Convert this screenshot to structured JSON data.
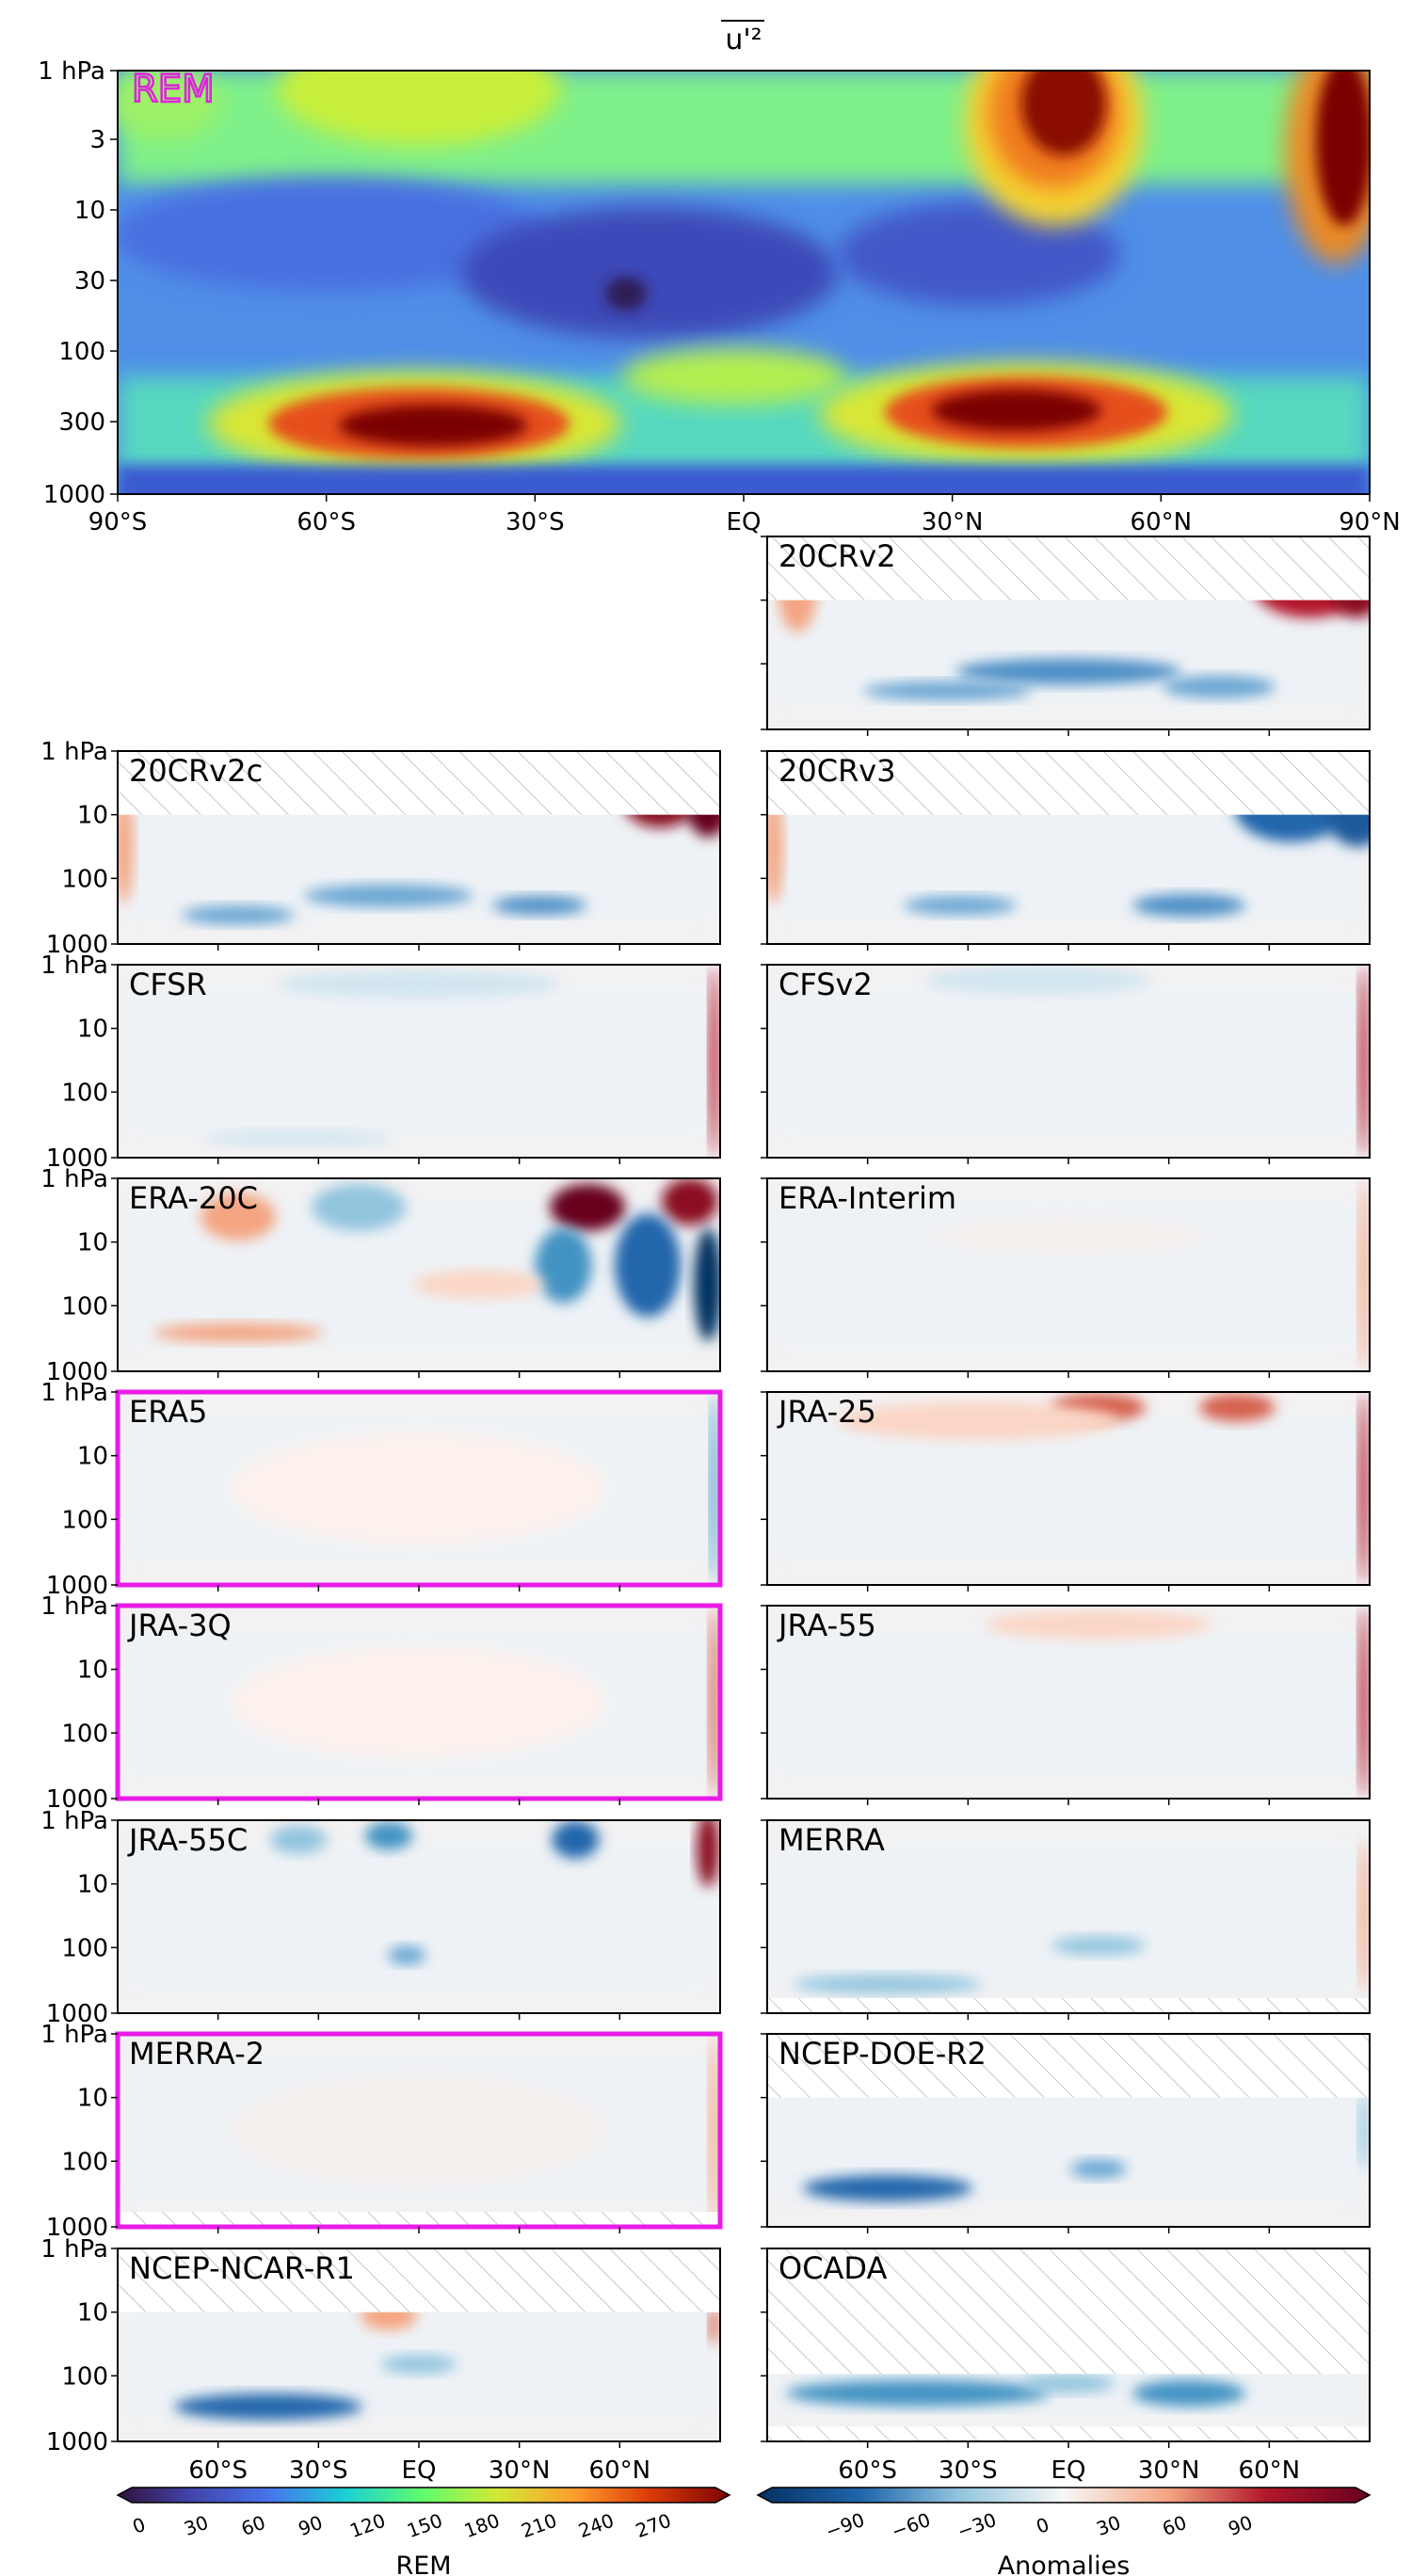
{
  "figure": {
    "title": "u'²",
    "main_panel": {
      "label": "REM",
      "label_color": "#e020e0",
      "y_ticks": [
        "1 hPa",
        "3",
        "10",
        "30",
        "100",
        "300",
        "1000"
      ],
      "x_ticks": [
        "90°S",
        "60°S",
        "30°S",
        "EQ",
        "30°N",
        "60°N",
        "90°N"
      ]
    },
    "small_panel_y_ticks": [
      "1 hPa",
      "10",
      "100",
      "1000"
    ],
    "bottom_x_ticks": [
      "60°S",
      "30°S",
      "EQ",
      "30°N",
      "60°N"
    ],
    "colorbars": {
      "rem": {
        "label": "REM",
        "ticks": [
          "0",
          "30",
          "60",
          "90",
          "120",
          "150",
          "180",
          "210",
          "240",
          "270"
        ]
      },
      "anomalies": {
        "label": "Anomalies",
        "ticks": [
          "−90",
          "−60",
          "−30",
          "0",
          "30",
          "60",
          "90"
        ]
      }
    },
    "highlight_color": "#e81be8",
    "panels": [
      {
        "name": "20CRv2",
        "col": "right",
        "row": 0,
        "highlight": false
      },
      {
        "name": "20CRv2c",
        "col": "left",
        "row": 1,
        "highlight": false
      },
      {
        "name": "20CRv3",
        "col": "right",
        "row": 1,
        "highlight": false
      },
      {
        "name": "CFSR",
        "col": "left",
        "row": 2,
        "highlight": false
      },
      {
        "name": "CFSv2",
        "col": "right",
        "row": 2,
        "highlight": false
      },
      {
        "name": "ERA-20C",
        "col": "left",
        "row": 3,
        "highlight": false
      },
      {
        "name": "ERA-Interim",
        "col": "right",
        "row": 3,
        "highlight": false
      },
      {
        "name": "ERA5",
        "col": "left",
        "row": 4,
        "highlight": true
      },
      {
        "name": "JRA-25",
        "col": "right",
        "row": 4,
        "highlight": false
      },
      {
        "name": "JRA-3Q",
        "col": "left",
        "row": 5,
        "highlight": true
      },
      {
        "name": "JRA-55",
        "col": "right",
        "row": 5,
        "highlight": false
      },
      {
        "name": "JRA-55C",
        "col": "left",
        "row": 6,
        "highlight": false
      },
      {
        "name": "MERRA",
        "col": "right",
        "row": 6,
        "highlight": false
      },
      {
        "name": "MERRA-2",
        "col": "left",
        "row": 7,
        "highlight": true
      },
      {
        "name": "NCEP-DOE-R2",
        "col": "right",
        "row": 7,
        "highlight": false
      },
      {
        "name": "NCEP-NCAR-R1",
        "col": "left",
        "row": 8,
        "highlight": false
      },
      {
        "name": "OCADA",
        "col": "right",
        "row": 8,
        "highlight": false
      }
    ]
  },
  "chart_data": {
    "type": "heatmap",
    "title": "u'²",
    "x_range": [
      "90°S",
      "90°N"
    ],
    "y_range_hPa": [
      1000,
      1
    ],
    "y_scale": "log",
    "rem_color_range": [
      0,
      270
    ],
    "anomaly_color_range": [
      -90,
      90
    ],
    "rem_maxima": [
      {
        "lat": -50,
        "pressure_hPa": 300,
        "value": 280
      },
      {
        "lat": 40,
        "pressure_hPa": 300,
        "value": 280
      },
      {
        "lat": 50,
        "pressure_hPa": 2,
        "value": 280
      },
      {
        "lat": 90,
        "pressure_hPa": 2,
        "value": 280
      }
    ],
    "rem_minimum": {
      "lat": -18,
      "pressure_hPa": 30,
      "value": 0
    }
  }
}
